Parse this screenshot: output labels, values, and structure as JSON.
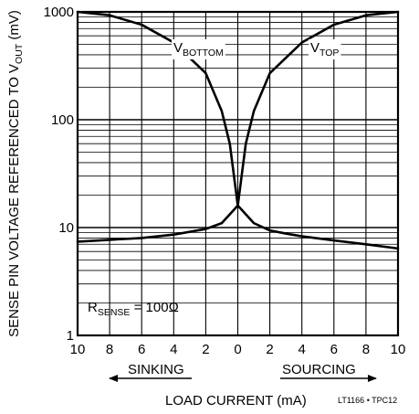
{
  "chart_data": {
    "type": "line",
    "title": "",
    "xlabel": "LOAD CURRENT (mA)",
    "ylabel": "SENSE PIN VOLTAGE REFERENCED TO V",
    "ylabel_sub": "OUT",
    "ylabel_unit": " (mV)",
    "yscale": "log",
    "ylim": [
      1,
      1000
    ],
    "xlim": [
      -10,
      10
    ],
    "x_ticks": [
      -10,
      -8,
      -6,
      -4,
      -2,
      0,
      2,
      4,
      6,
      8,
      10
    ],
    "x_tick_labels": [
      "10",
      "8",
      "6",
      "4",
      "2",
      "0",
      "2",
      "4",
      "6",
      "8",
      "10"
    ],
    "y_ticks": [
      1,
      10,
      100,
      1000
    ],
    "y_tick_labels": [
      "1",
      "10",
      "100",
      "1000"
    ],
    "grid": true,
    "direction_labels": {
      "left": "SINKING",
      "right": "SOURCING"
    },
    "annotation": {
      "text": "R",
      "sub": "SENSE",
      "rest": " = 100Ω"
    },
    "figure_code": "LT1166 • TPC12",
    "series": [
      {
        "name_main": "V",
        "name_sub": "TOP",
        "x": [
          -10,
          -8,
          -6,
          -4,
          -2,
          -1,
          0,
          1,
          2,
          3,
          4,
          6,
          8,
          10
        ],
        "y": [
          7.4,
          7.7,
          8.0,
          8.6,
          9.7,
          11.0,
          16.0,
          11.0,
          9.4,
          8.8,
          8.3,
          7.6,
          7.0,
          6.4
        ]
      },
      {
        "name_main": "V",
        "name_sub": "BOTTOM",
        "x": [
          -10,
          -8,
          -6,
          -4,
          -2,
          -1,
          -0.5,
          0
        ],
        "y": [
          1000,
          930,
          760,
          520,
          270,
          120,
          60,
          16.0
        ]
      },
      {
        "name_main": "",
        "name_sub": "",
        "x": [
          0,
          0.5,
          1,
          2,
          4,
          6,
          8,
          10
        ],
        "y": [
          16.0,
          60,
          120,
          270,
          520,
          760,
          930,
          1000
        ]
      }
    ],
    "series_label_refs": {
      "vbottom": 1,
      "vtop": 0
    }
  }
}
